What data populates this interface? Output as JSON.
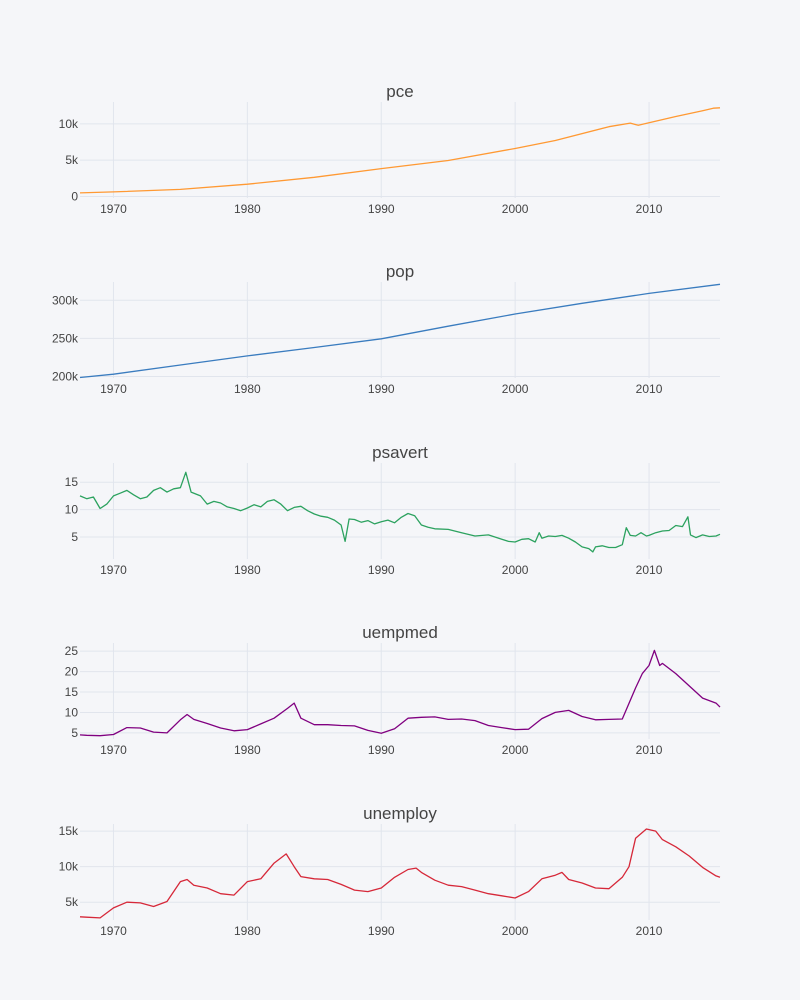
{
  "chart_data": [
    {
      "type": "line",
      "title": "pce",
      "color": "#ff9933",
      "xlim": [
        1967.5,
        2015.3
      ],
      "ylim": [
        -200,
        13000
      ],
      "x_ticks": [
        1970,
        1980,
        1990,
        2000,
        2010
      ],
      "y_ticks": [
        {
          "value": 0,
          "label": "0"
        },
        {
          "value": 5000,
          "label": "5k"
        },
        {
          "value": 10000,
          "label": "10k"
        }
      ],
      "series": [
        {
          "x": [
            1967.5,
            1970,
            1975,
            1980,
            1985,
            1990,
            1995,
            2000,
            2003,
            2007,
            2008.6,
            2009.2,
            2010,
            2012,
            2014,
            2014.8,
            2015.3
          ],
          "y": [
            507,
            640,
            980,
            1700,
            2650,
            3840,
            4960,
            6600,
            7700,
            9600,
            10100,
            9800,
            10150,
            11000,
            11800,
            12150,
            12200
          ]
        }
      ]
    },
    {
      "type": "line",
      "title": "pop",
      "color": "#3a7cbf",
      "xlim": [
        1967.5,
        2015.3
      ],
      "ylim": [
        198000,
        324000
      ],
      "x_ticks": [
        1970,
        1980,
        1990,
        2000,
        2010
      ],
      "y_ticks": [
        {
          "value": 200000,
          "label": "200k"
        },
        {
          "value": 250000,
          "label": "250k"
        },
        {
          "value": 300000,
          "label": "300k"
        }
      ],
      "series": [
        {
          "x": [
            1967.5,
            1970,
            1975,
            1980,
            1985,
            1990,
            1995,
            2000,
            2005,
            2010,
            2015.3
          ],
          "y": [
            198700,
            203000,
            215000,
            227000,
            238000,
            249500,
            266000,
            282000,
            296000,
            309000,
            321000
          ]
        }
      ]
    },
    {
      "type": "line",
      "title": "psavert",
      "color": "#2ca25f",
      "xlim": [
        1967.5,
        2015.3
      ],
      "ylim": [
        1,
        18.5
      ],
      "x_ticks": [
        1970,
        1980,
        1990,
        2000,
        2010
      ],
      "y_ticks": [
        {
          "value": 5,
          "label": "5"
        },
        {
          "value": 10,
          "label": "10"
        },
        {
          "value": 15,
          "label": "15"
        }
      ],
      "series": [
        {
          "x": [
            1967.5,
            1968,
            1968.5,
            1969,
            1969.5,
            1970,
            1970.5,
            1971,
            1971.5,
            1972,
            1972.5,
            1973,
            1973.5,
            1974,
            1974.5,
            1975,
            1975.4,
            1975.8,
            1976.5,
            1977,
            1977.5,
            1978,
            1978.5,
            1979,
            1979.5,
            1980,
            1980.5,
            1981,
            1981.5,
            1982,
            1982.5,
            1983,
            1983.5,
            1984,
            1984.5,
            1985,
            1985.5,
            1986,
            1986.5,
            1987,
            1987.3,
            1987.6,
            1988,
            1988.5,
            1989,
            1989.5,
            1990,
            1990.5,
            1991,
            1991.5,
            1992,
            1992.5,
            1993,
            1993.5,
            1994,
            1995,
            1996,
            1997,
            1998,
            1999,
            1999.5,
            2000,
            2000.5,
            2001,
            2001.5,
            2001.8,
            2002,
            2002.5,
            2003,
            2003.5,
            2004,
            2004.5,
            2005,
            2005.5,
            2005.8,
            2006,
            2006.5,
            2007,
            2007.5,
            2008,
            2008.3,
            2008.6,
            2009,
            2009.4,
            2009.8,
            2010,
            2010.5,
            2011,
            2011.5,
            2012,
            2012.5,
            2012.9,
            2013.1,
            2013.5,
            2014,
            2014.5,
            2015,
            2015.3
          ],
          "y": [
            12.5,
            12,
            12.3,
            10.2,
            11,
            12.5,
            13,
            13.5,
            12.7,
            12,
            12.3,
            13.5,
            14,
            13.2,
            13.8,
            14,
            16.8,
            13.2,
            12.5,
            11,
            11.5,
            11.2,
            10.5,
            10.2,
            9.8,
            10.3,
            10.9,
            10.5,
            11.5,
            11.8,
            11,
            9.8,
            10.4,
            10.6,
            9.8,
            9.2,
            8.8,
            8.6,
            8.1,
            7.2,
            4.2,
            8.3,
            8.2,
            7.7,
            8,
            7.4,
            7.8,
            8.1,
            7.6,
            8.6,
            9.3,
            8.9,
            7.2,
            6.8,
            6.5,
            6.4,
            5.8,
            5.2,
            5.4,
            4.6,
            4.2,
            4.1,
            4.6,
            4.7,
            4.1,
            5.8,
            4.8,
            5.2,
            5.1,
            5.3,
            4.8,
            4.1,
            3.2,
            2.9,
            2.3,
            3.2,
            3.4,
            3.1,
            3.1,
            3.6,
            6.7,
            5.3,
            5.2,
            5.8,
            5.2,
            5.3,
            5.8,
            6.1,
            6.2,
            7.1,
            6.9,
            8.7,
            5.4,
            4.9,
            5.4,
            5.1,
            5.2,
            5.5
          ]
        }
      ]
    },
    {
      "type": "line",
      "title": "uempmed",
      "color": "#800080",
      "xlim": [
        1967.5,
        2015.3
      ],
      "ylim": [
        3.5,
        27
      ],
      "x_ticks": [
        1970,
        1980,
        1990,
        2000,
        2010
      ],
      "y_ticks": [
        {
          "value": 5,
          "label": "5"
        },
        {
          "value": 10,
          "label": "10"
        },
        {
          "value": 15,
          "label": "15"
        },
        {
          "value": 20,
          "label": "20"
        },
        {
          "value": 25,
          "label": "25"
        }
      ],
      "series": [
        {
          "x": [
            1967.5,
            1968,
            1969,
            1970,
            1971,
            1972,
            1973,
            1974,
            1975,
            1975.5,
            1976,
            1977,
            1978,
            1979,
            1980,
            1981,
            1982,
            1983,
            1983.5,
            1984,
            1985,
            1986,
            1987,
            1988,
            1989,
            1990,
            1991,
            1992,
            1993,
            1994,
            1995,
            1996,
            1997,
            1998,
            1999,
            2000,
            2001,
            2002,
            2003,
            2004,
            2005,
            2006,
            2007,
            2008,
            2009,
            2009.5,
            2010,
            2010.4,
            2010.8,
            2011,
            2012,
            2013,
            2014,
            2015,
            2015.3
          ],
          "y": [
            4.5,
            4.4,
            4.3,
            4.6,
            6.3,
            6.2,
            5.2,
            5,
            8.2,
            9.5,
            8.3,
            7.3,
            6.2,
            5.5,
            5.8,
            7.2,
            8.6,
            11,
            12.3,
            8.6,
            7,
            7,
            6.8,
            6.7,
            5.6,
            4.9,
            6,
            8.6,
            8.8,
            8.9,
            8.3,
            8.4,
            8,
            6.8,
            6.3,
            5.8,
            5.9,
            8.5,
            10,
            10.5,
            9,
            8.2,
            8.3,
            8.4,
            16,
            19.5,
            21.5,
            25.2,
            21.5,
            22,
            19.5,
            16.5,
            13.5,
            12.3,
            11.3
          ]
        }
      ]
    },
    {
      "type": "line",
      "title": "unemploy",
      "color": "#d62839",
      "xlim": [
        1967.5,
        2015.3
      ],
      "ylim": [
        2500,
        16000
      ],
      "x_ticks": [
        1970,
        1980,
        1990,
        2000,
        2010
      ],
      "y_ticks": [
        {
          "value": 5000,
          "label": "5k"
        },
        {
          "value": 10000,
          "label": "10k"
        },
        {
          "value": 15000,
          "label": "15k"
        }
      ],
      "series": [
        {
          "x": [
            1967.5,
            1968,
            1969,
            1970,
            1971,
            1972,
            1973,
            1974,
            1975,
            1975.5,
            1976,
            1977,
            1978,
            1979,
            1980,
            1981,
            1982,
            1982.9,
            1983.5,
            1984,
            1985,
            1986,
            1987,
            1988,
            1989,
            1990,
            1991,
            1992,
            1992.6,
            1993,
            1994,
            1995,
            1996,
            1997,
            1998,
            1999,
            2000,
            2001,
            2002,
            2003,
            2003.5,
            2004,
            2005,
            2006,
            2007,
            2008,
            2008.5,
            2009,
            2009.8,
            2010.5,
            2011,
            2012,
            2013,
            2014,
            2015,
            2015.3
          ],
          "y": [
            2950,
            2900,
            2800,
            4200,
            5000,
            4900,
            4400,
            5100,
            7900,
            8200,
            7400,
            7000,
            6200,
            6000,
            7900,
            8300,
            10500,
            11800,
            10000,
            8600,
            8300,
            8200,
            7500,
            6700,
            6500,
            7000,
            8500,
            9600,
            9800,
            9200,
            8100,
            7400,
            7200,
            6700,
            6200,
            5900,
            5600,
            6500,
            8300,
            8800,
            9200,
            8200,
            7700,
            7000,
            6900,
            8500,
            10000,
            14000,
            15300,
            15000,
            13800,
            12800,
            11500,
            9900,
            8700,
            8500
          ]
        }
      ]
    }
  ]
}
